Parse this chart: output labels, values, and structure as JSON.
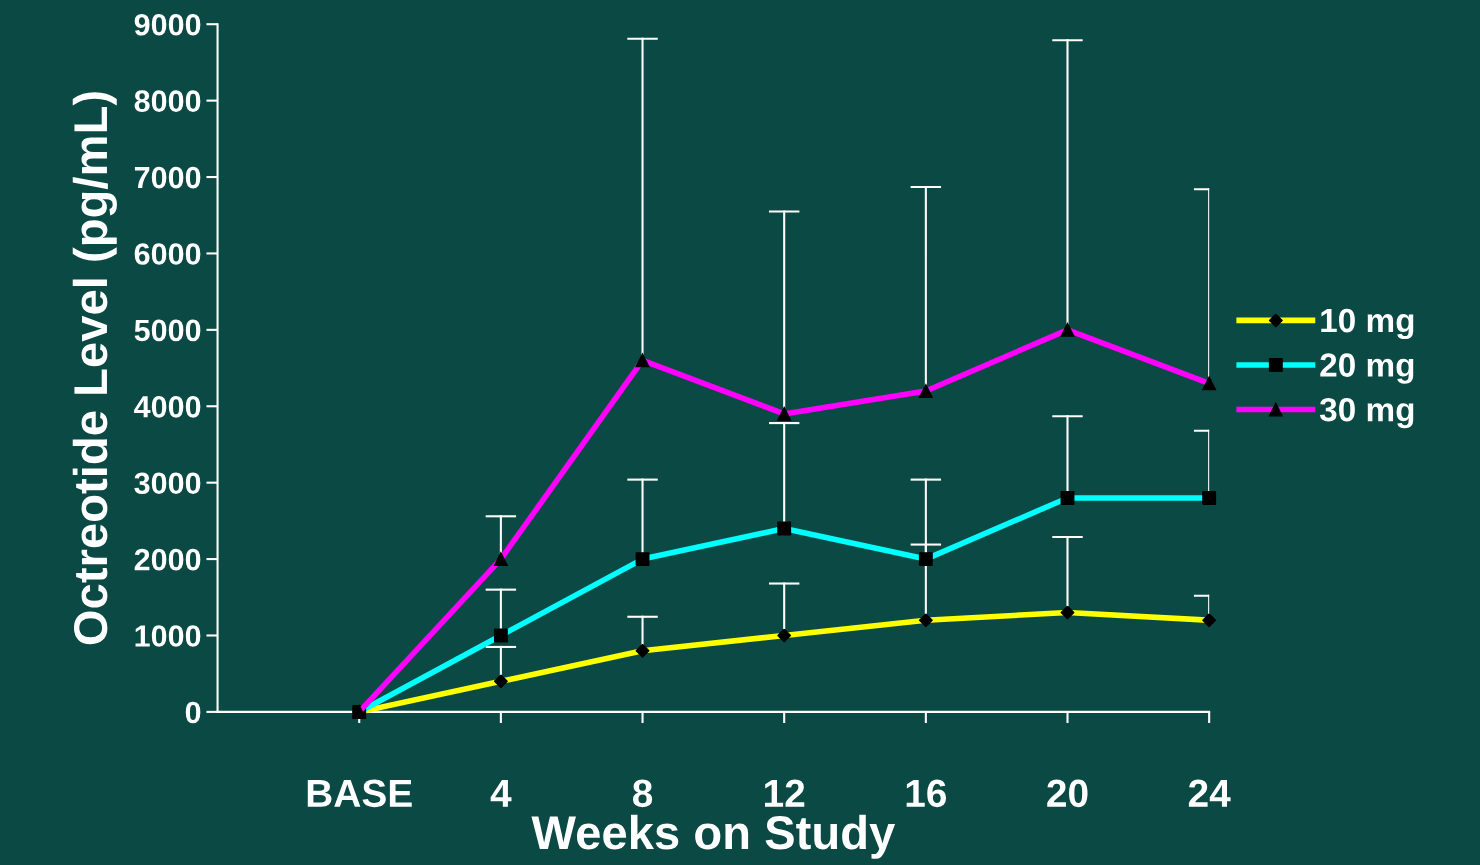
{
  "chart_data": {
    "type": "line",
    "xlabel": "Weeks on Study",
    "ylabel": "Octreotide Level (pg/mL)",
    "categories": [
      "BASE",
      "4",
      "8",
      "12",
      "16",
      "20",
      "24"
    ],
    "ylim": [
      0,
      9000
    ],
    "yticks": [
      0,
      1000,
      2000,
      3000,
      4000,
      5000,
      6000,
      7000,
      8000,
      9000
    ],
    "grid": false,
    "legend": "right",
    "series": [
      {
        "name": "10 mg",
        "color": "#ffff00",
        "marker": "diamond",
        "values": [
          0,
          400,
          800,
          1000,
          1200,
          1300,
          1200
        ],
        "errors": [
          null,
          [
            400,
            850
          ],
          [
            800,
            1245
          ],
          [
            1000,
            1680
          ],
          [
            1200,
            2190
          ],
          [
            1300,
            2290
          ],
          [
            1200,
            1520
          ]
        ]
      },
      {
        "name": "20 mg",
        "color": "#00ffff",
        "marker": "square",
        "values": [
          0,
          1000,
          2000,
          2400,
          2000,
          2800,
          2800
        ],
        "errors": [
          null,
          [
            1000,
            1600
          ],
          [
            2000,
            3040
          ],
          [
            2400,
            3780
          ],
          [
            2000,
            3040
          ],
          [
            2800,
            3870
          ],
          [
            2800,
            3680
          ]
        ]
      },
      {
        "name": "30 mg",
        "color": "#ff00ff",
        "marker": "triangle",
        "values": [
          0,
          2000,
          4600,
          3900,
          4200,
          5000,
          4300
        ],
        "errors": [
          null,
          [
            2000,
            2560
          ],
          [
            4600,
            8810
          ],
          [
            3900,
            6550
          ],
          [
            4200,
            6870
          ],
          [
            5000,
            8790
          ],
          [
            4300,
            6840
          ]
        ]
      }
    ]
  }
}
